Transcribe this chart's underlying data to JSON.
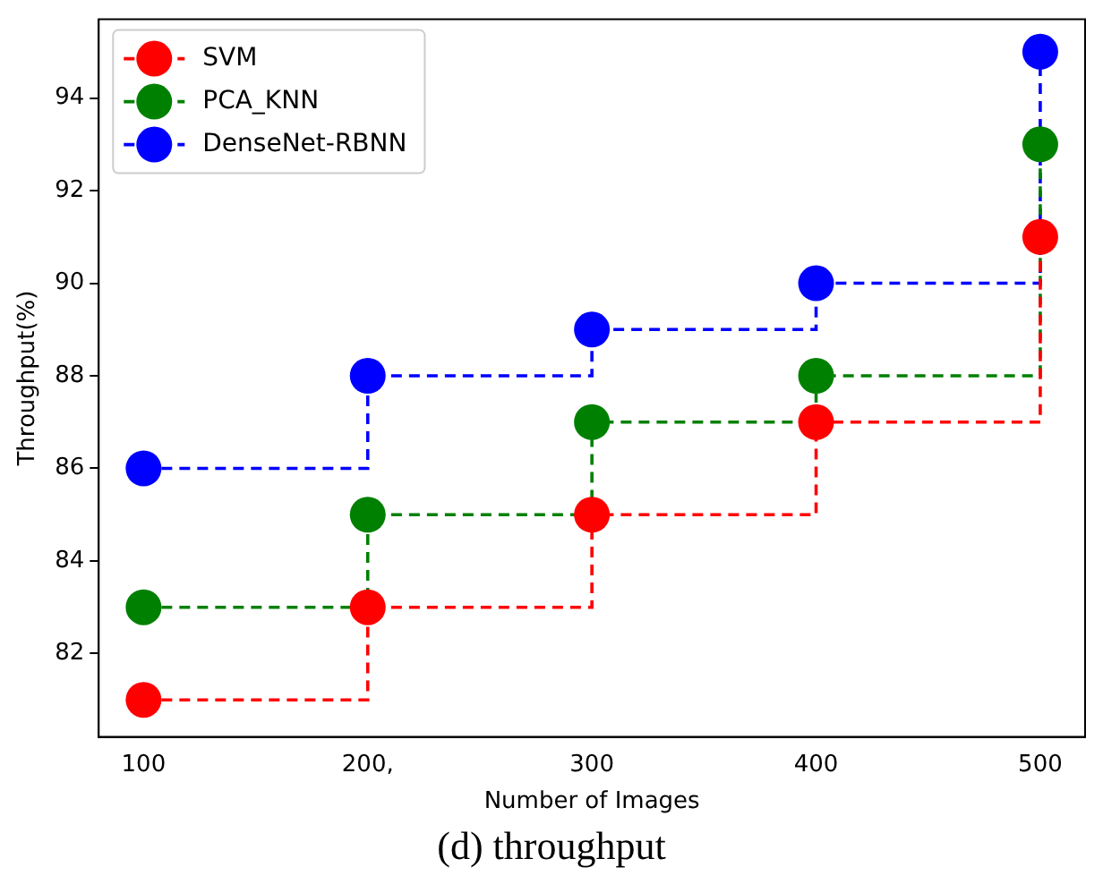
{
  "chart_data": {
    "type": "step",
    "xlabel": "Number of Images",
    "ylabel": "Throughput(%)",
    "x": [
      100,
      200,
      300,
      400,
      500
    ],
    "series": [
      {
        "name": "SVM",
        "color": "#ff0000",
        "values": [
          81,
          83,
          85,
          87,
          91
        ]
      },
      {
        "name": "PCA_KNN",
        "color": "#008000",
        "values": [
          83,
          85,
          87,
          88,
          93
        ]
      },
      {
        "name": "DenseNet-RBNN",
        "color": "#0000ff",
        "values": [
          86,
          88,
          89,
          90,
          95
        ]
      }
    ],
    "xlim": [
      80,
      520
    ],
    "xticks": [
      100,
      {
        "value": 200,
        "label": "200,"
      },
      300,
      400,
      500
    ],
    "ylim": [
      80.2,
      95.7
    ],
    "yticks": [
      82,
      84,
      86,
      88,
      90,
      92,
      94
    ],
    "marker": "circle",
    "line_style": "dashed",
    "legend": "top left",
    "grid": false,
    "annotations": [
      "(d) throughput"
    ]
  }
}
